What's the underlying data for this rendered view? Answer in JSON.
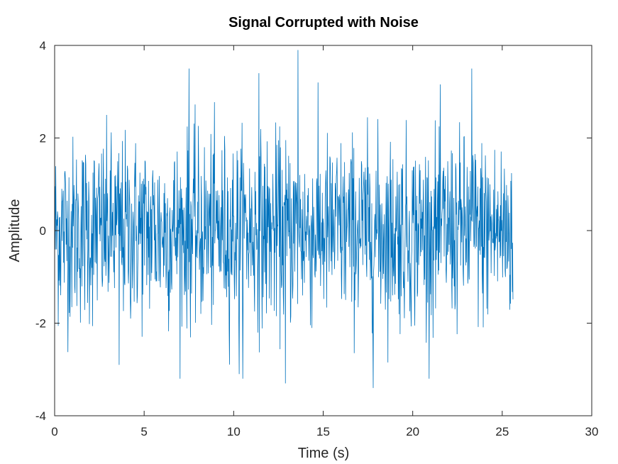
{
  "chart_data": {
    "type": "line",
    "title": "Signal Corrupted with Noise",
    "xlabel": "Time (s)",
    "ylabel": "Amplitude",
    "xlim": [
      0,
      30
    ],
    "ylim": [
      -4,
      4
    ],
    "xticks": [
      "0",
      "5",
      "10",
      "15",
      "20",
      "25",
      "30"
    ],
    "yticks": [
      "4",
      "2",
      "0",
      "-2",
      "-4"
    ],
    "grid": false,
    "line_color": "#0072BD",
    "series": [
      {
        "x_start": 0,
        "x_end": 25.6,
        "num_samples": 1280,
        "noise_std": 1.0,
        "peaks": [
          {
            "x": 13.6,
            "y": 3.9
          },
          {
            "x": 7.5,
            "y": 3.5
          },
          {
            "x": 23.3,
            "y": 3.5
          },
          {
            "x": 11.4,
            "y": 3.4
          },
          {
            "x": 17.8,
            "y": -3.4
          },
          {
            "x": 12.9,
            "y": -3.3
          },
          {
            "x": 10.3,
            "y": -3.1
          },
          {
            "x": 3.6,
            "y": -2.9
          }
        ]
      }
    ]
  }
}
